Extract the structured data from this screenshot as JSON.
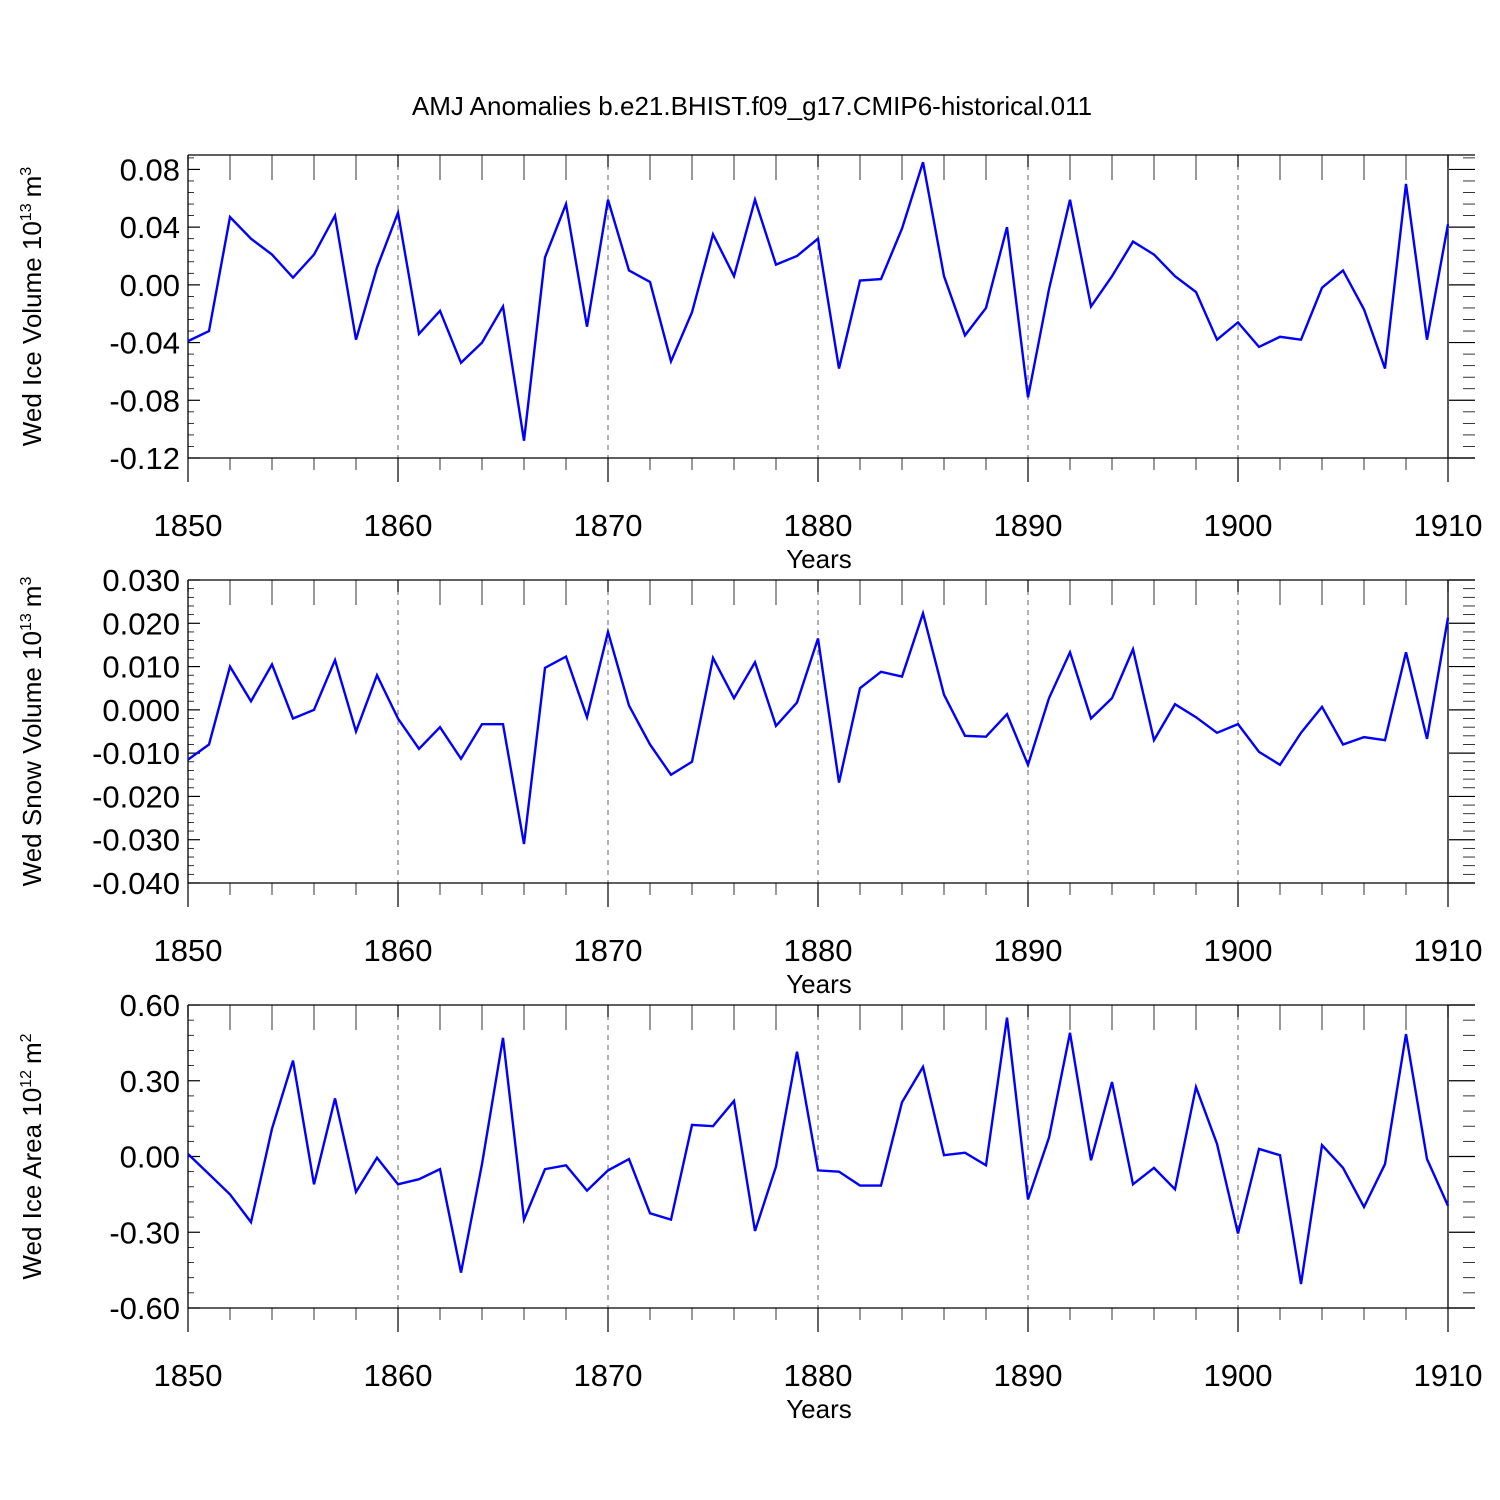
{
  "figure_title": "AMJ Anomalies b.e21.BHIST.f09_g17.CMIP6-historical.011",
  "colors": {
    "series": "#0000ff",
    "axes": "#000000",
    "grid": "#555555",
    "background": "#ffffff"
  },
  "chart_data": [
    {
      "type": "line",
      "title": "",
      "xlabel": "Years",
      "ylabel": "Wed Ice Volume 10",
      "ylabel_exp": "13",
      "ylabel_unit": "m",
      "ylabel_unit_exp": "3",
      "xlim": [
        1850,
        1910
      ],
      "ylim": [
        -0.12,
        0.09
      ],
      "reference_line": 0.09,
      "x_ticks": [
        1850,
        1860,
        1870,
        1880,
        1890,
        1900,
        1910
      ],
      "x_tick_labels": [
        "1850",
        "1860",
        "1870",
        "1880",
        "1890",
        "1900",
        "1910"
      ],
      "y_ticks": [
        -0.12,
        -0.08,
        -0.04,
        0.0,
        0.04,
        0.08
      ],
      "y_tick_labels": [
        "-0.12",
        "-0.08",
        "-0.04",
        "0.00",
        "0.04",
        "0.08"
      ],
      "y_minor_step": 0.008,
      "grid_x": [
        1860,
        1870,
        1880,
        1890,
        1900
      ],
      "series": [
        {
          "name": "Wed Ice Volume",
          "x": [
            1850,
            1851,
            1852,
            1853,
            1854,
            1855,
            1856,
            1857,
            1858,
            1859,
            1860,
            1861,
            1862,
            1863,
            1864,
            1865,
            1866,
            1867,
            1868,
            1869,
            1870,
            1871,
            1872,
            1873,
            1874,
            1875,
            1876,
            1877,
            1878,
            1879,
            1880,
            1881,
            1882,
            1883,
            1884,
            1885,
            1886,
            1887,
            1888,
            1889,
            1890,
            1891,
            1892,
            1893,
            1894,
            1895,
            1896,
            1897,
            1898,
            1899,
            1900,
            1901,
            1902,
            1903,
            1904,
            1905,
            1906,
            1907,
            1908,
            1909,
            1910
          ],
          "values": [
            -0.039,
            -0.032,
            0.047,
            0.032,
            0.021,
            0.005,
            0.021,
            0.048,
            -0.038,
            0.012,
            0.05,
            -0.034,
            -0.018,
            -0.054,
            -0.04,
            -0.015,
            -0.108,
            0.019,
            0.056,
            -0.029,
            0.059,
            0.01,
            0.002,
            -0.053,
            -0.019,
            0.035,
            0.006,
            0.059,
            0.014,
            0.02,
            0.032,
            -0.058,
            0.003,
            0.004,
            0.039,
            0.085,
            0.006,
            -0.035,
            -0.016,
            0.04,
            -0.078,
            -0.003,
            0.059,
            -0.015,
            0.006,
            0.03,
            0.021,
            0.006,
            -0.005,
            -0.038,
            -0.026,
            -0.043,
            -0.036,
            -0.038,
            -0.002,
            0.01,
            -0.017,
            -0.058,
            0.07,
            -0.038,
            0.042
          ]
        }
      ]
    },
    {
      "type": "line",
      "title": "",
      "xlabel": "Years",
      "ylabel": "Wed Snow Volume 10",
      "ylabel_exp": "13",
      "ylabel_unit": "m",
      "ylabel_unit_exp": "3",
      "xlim": [
        1850,
        1910
      ],
      "ylim": [
        -0.04,
        0.03
      ],
      "reference_line": 0.03,
      "x_ticks": [
        1850,
        1860,
        1870,
        1880,
        1890,
        1900,
        1910
      ],
      "x_tick_labels": [
        "1850",
        "1860",
        "1870",
        "1880",
        "1890",
        "1900",
        "1910"
      ],
      "y_ticks": [
        -0.04,
        -0.03,
        -0.02,
        -0.01,
        0.0,
        0.01,
        0.02,
        0.03
      ],
      "y_tick_labels": [
        "-0.040",
        "-0.030",
        "-0.020",
        "-0.010",
        "0.000",
        "0.010",
        "0.020",
        "0.030"
      ],
      "y_minor_step": 0.002,
      "grid_x": [
        1860,
        1870,
        1880,
        1890,
        1900
      ],
      "series": [
        {
          "name": "Wed Snow Volume",
          "x": [
            1850,
            1851,
            1852,
            1853,
            1854,
            1855,
            1856,
            1857,
            1858,
            1859,
            1860,
            1861,
            1862,
            1863,
            1864,
            1865,
            1866,
            1867,
            1868,
            1869,
            1870,
            1871,
            1872,
            1873,
            1874,
            1875,
            1876,
            1877,
            1878,
            1879,
            1880,
            1881,
            1882,
            1883,
            1884,
            1885,
            1886,
            1887,
            1888,
            1889,
            1890,
            1891,
            1892,
            1893,
            1894,
            1895,
            1896,
            1897,
            1898,
            1899,
            1900,
            1901,
            1902,
            1903,
            1904,
            1905,
            1906,
            1907,
            1908,
            1909,
            1910
          ],
          "values": [
            -0.0115,
            -0.008,
            0.01,
            0.002,
            0.0105,
            -0.002,
            0.0,
            0.0115,
            -0.005,
            0.008,
            -0.002,
            -0.009,
            -0.004,
            -0.0113,
            -0.0033,
            -0.0033,
            -0.031,
            0.0097,
            0.0123,
            -0.0017,
            0.018,
            0.001,
            -0.008,
            -0.015,
            -0.012,
            0.012,
            0.0027,
            0.011,
            -0.0037,
            0.0017,
            0.0165,
            -0.0168,
            0.005,
            0.0088,
            0.0077,
            0.0223,
            0.0035,
            -0.006,
            -0.0062,
            -0.001,
            -0.0127,
            0.0027,
            0.0133,
            -0.002,
            0.0027,
            0.014,
            -0.007,
            0.0013,
            -0.0017,
            -0.0053,
            -0.0033,
            -0.0097,
            -0.0127,
            -0.0053,
            0.0007,
            -0.008,
            -0.0063,
            -0.007,
            0.0133,
            -0.0067,
            0.0213
          ]
        }
      ]
    },
    {
      "type": "line",
      "title": "",
      "xlabel": "Years",
      "ylabel": "Wed Ice Area 10",
      "ylabel_exp": "12",
      "ylabel_unit": "m",
      "ylabel_unit_exp": "2",
      "xlim": [
        1850,
        1910
      ],
      "ylim": [
        -0.6,
        0.6
      ],
      "reference_line": 0.6,
      "x_ticks": [
        1850,
        1860,
        1870,
        1880,
        1890,
        1900,
        1910
      ],
      "x_tick_labels": [
        "1850",
        "1860",
        "1870",
        "1880",
        "1890",
        "1900",
        "1910"
      ],
      "y_ticks": [
        -0.6,
        -0.3,
        0.0,
        0.3,
        0.6
      ],
      "y_tick_labels": [
        "-0.60",
        "-0.30",
        "0.00",
        "0.30",
        "0.60"
      ],
      "y_minor_step": 0.06,
      "grid_x": [
        1860,
        1870,
        1880,
        1890,
        1900
      ],
      "series": [
        {
          "name": "Wed Ice Area",
          "x": [
            1850,
            1851,
            1852,
            1853,
            1854,
            1855,
            1856,
            1857,
            1858,
            1859,
            1860,
            1861,
            1862,
            1863,
            1864,
            1865,
            1866,
            1867,
            1868,
            1869,
            1870,
            1871,
            1872,
            1873,
            1874,
            1875,
            1876,
            1877,
            1878,
            1879,
            1880,
            1881,
            1882,
            1883,
            1884,
            1885,
            1886,
            1887,
            1888,
            1889,
            1890,
            1891,
            1892,
            1893,
            1894,
            1895,
            1896,
            1897,
            1898,
            1899,
            1900,
            1901,
            1902,
            1903,
            1904,
            1905,
            1906,
            1907,
            1908,
            1909,
            1910
          ],
          "values": [
            0.01,
            -0.07,
            -0.15,
            -0.26,
            0.11,
            0.38,
            -0.11,
            0.23,
            -0.14,
            -0.005,
            -0.11,
            -0.09,
            -0.05,
            -0.46,
            -0.03,
            0.47,
            -0.25,
            -0.05,
            -0.035,
            -0.135,
            -0.055,
            -0.01,
            -0.225,
            -0.25,
            0.125,
            0.12,
            0.22,
            -0.295,
            -0.04,
            0.415,
            -0.055,
            -0.06,
            -0.115,
            -0.115,
            0.215,
            0.355,
            0.005,
            0.015,
            -0.035,
            0.55,
            -0.17,
            0.075,
            0.49,
            -0.015,
            0.295,
            -0.11,
            -0.045,
            -0.13,
            0.275,
            0.05,
            -0.305,
            0.03,
            0.005,
            -0.505,
            0.045,
            -0.045,
            -0.2,
            -0.03,
            0.485,
            -0.01,
            -0.195
          ]
        }
      ]
    }
  ]
}
